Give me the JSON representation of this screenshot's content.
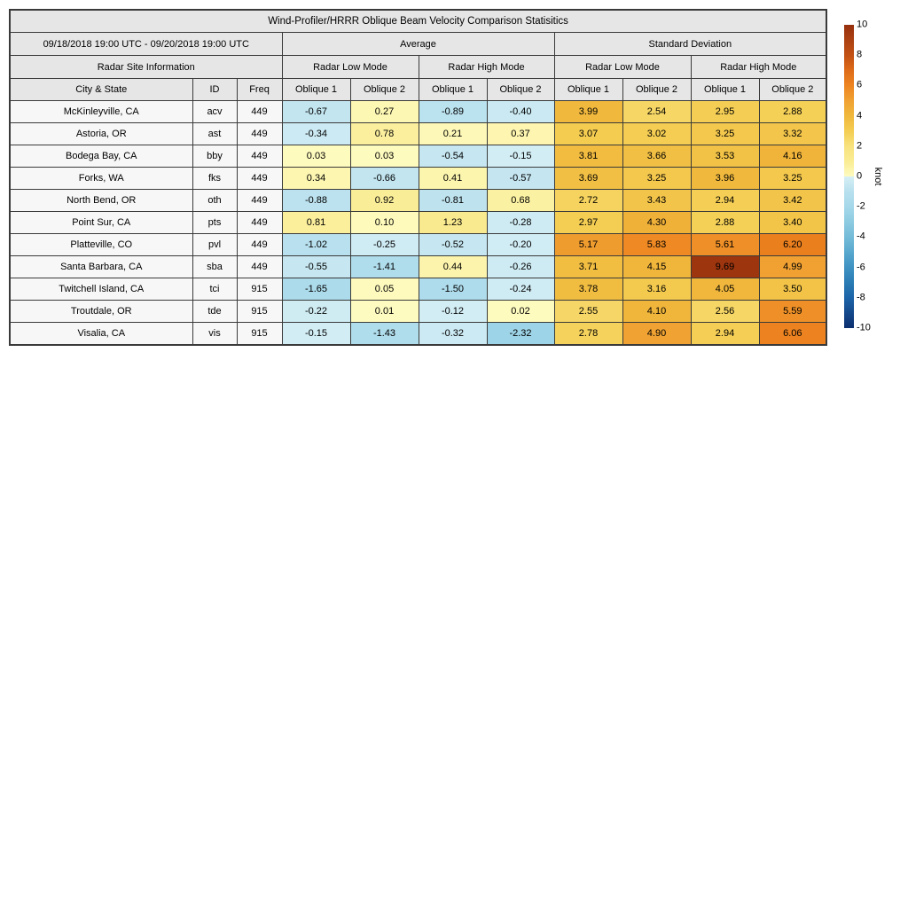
{
  "chart_data": {
    "type": "heatmap-table",
    "title": "Wind-Profiler/HRRR Oblique Beam Velocity Comparison Statisitics",
    "header": {
      "date_range": "09/18/2018 19:00 UTC - 09/20/2018 19:00 UTC",
      "group_average": "Average",
      "group_std": "Standard Deviation",
      "site_info": "Radar Site Information",
      "mode_labels": [
        "Radar Low Mode",
        "Radar High Mode",
        "Radar Low Mode",
        "Radar High Mode"
      ],
      "col_city": "City & State",
      "col_id": "ID",
      "col_freq": "Freq",
      "oblique_labels": [
        "Oblique 1",
        "Oblique 2",
        "Oblique 1",
        "Oblique 2",
        "Oblique 1",
        "Oblique 2",
        "Oblique 1",
        "Oblique 2"
      ]
    },
    "columns": [
      "City & State",
      "ID",
      "Freq",
      "Average Radar Low Mode Oblique 1",
      "Average Radar Low Mode Oblique 2",
      "Average Radar High Mode Oblique 1",
      "Average Radar High Mode Oblique 2",
      "Standard Deviation Radar Low Mode Oblique 1",
      "Standard Deviation Radar Low Mode Oblique 2",
      "Standard Deviation Radar High Mode Oblique 1",
      "Standard Deviation Radar High Mode Oblique 2"
    ],
    "rows": [
      {
        "city": "McKinleyville, CA",
        "id": "acv",
        "freq": "449",
        "values": [
          "-0.67",
          "0.27",
          "-0.89",
          "-0.40",
          "3.99",
          "2.54",
          "2.95",
          "2.88"
        ]
      },
      {
        "city": "Astoria, OR",
        "id": "ast",
        "freq": "449",
        "values": [
          "-0.34",
          "0.78",
          "0.21",
          "0.37",
          "3.07",
          "3.02",
          "3.25",
          "3.32"
        ]
      },
      {
        "city": "Bodega Bay, CA",
        "id": "bby",
        "freq": "449",
        "values": [
          "0.03",
          "0.03",
          "-0.54",
          "-0.15",
          "3.81",
          "3.66",
          "3.53",
          "4.16"
        ]
      },
      {
        "city": "Forks, WA",
        "id": "fks",
        "freq": "449",
        "values": [
          "0.34",
          "-0.66",
          "0.41",
          "-0.57",
          "3.69",
          "3.25",
          "3.96",
          "3.25"
        ]
      },
      {
        "city": "North Bend, OR",
        "id": "oth",
        "freq": "449",
        "values": [
          "-0.88",
          "0.92",
          "-0.81",
          "0.68",
          "2.72",
          "3.43",
          "2.94",
          "3.42"
        ]
      },
      {
        "city": "Point Sur, CA",
        "id": "pts",
        "freq": "449",
        "values": [
          "0.81",
          "0.10",
          "1.23",
          "-0.28",
          "2.97",
          "4.30",
          "2.88",
          "3.40"
        ]
      },
      {
        "city": "Platteville, CO",
        "id": "pvl",
        "freq": "449",
        "values": [
          "-1.02",
          "-0.25",
          "-0.52",
          "-0.20",
          "5.17",
          "5.83",
          "5.61",
          "6.20"
        ]
      },
      {
        "city": "Santa Barbara, CA",
        "id": "sba",
        "freq": "449",
        "values": [
          "-0.55",
          "-1.41",
          "0.44",
          "-0.26",
          "3.71",
          "4.15",
          "9.69",
          "4.99"
        ]
      },
      {
        "city": "Twitchell Island, CA",
        "id": "tci",
        "freq": "915",
        "values": [
          "-1.65",
          "0.05",
          "-1.50",
          "-0.24",
          "3.78",
          "3.16",
          "4.05",
          "3.50"
        ]
      },
      {
        "city": "Troutdale, OR",
        "id": "tde",
        "freq": "915",
        "values": [
          "-0.22",
          "0.01",
          "-0.12",
          "0.02",
          "2.55",
          "4.10",
          "2.56",
          "5.59"
        ]
      },
      {
        "city": "Visalia, CA",
        "id": "vis",
        "freq": "915",
        "values": [
          "-0.15",
          "-1.43",
          "-0.32",
          "-2.32",
          "2.78",
          "4.90",
          "2.94",
          "6.06"
        ]
      }
    ],
    "colorbar": {
      "label": "knot",
      "min": -10,
      "max": 10,
      "ticks": [
        "10",
        "8",
        "6",
        "4",
        "2",
        "0",
        "-2",
        "-4",
        "-6",
        "-8",
        "-10"
      ]
    },
    "colors": {
      "header_bg": "#e6e6e6",
      "label_cell_bg": "#f7f7f7",
      "border": "#3a3a3a",
      "colormap": {
        "neg_stops": [
          [
            -10,
            "#0C2E6E"
          ],
          [
            -9,
            "#14498B"
          ],
          [
            -8,
            "#1C64A8"
          ],
          [
            -7,
            "#2A7CB4"
          ],
          [
            -6,
            "#3E92C2"
          ],
          [
            -5,
            "#58A8CE"
          ],
          [
            -4,
            "#74BBD8"
          ],
          [
            -3,
            "#8DCBE1"
          ],
          [
            -2,
            "#A5D8EA"
          ],
          [
            -1,
            "#B8E0EE"
          ],
          [
            0,
            "#D6EFF5"
          ]
        ],
        "pos_stops": [
          [
            0,
            "#FEFBC0"
          ],
          [
            1,
            "#FAEC94"
          ],
          [
            2,
            "#F8E27E"
          ],
          [
            3,
            "#F4CD52"
          ],
          [
            4,
            "#F0B83C"
          ],
          [
            5,
            "#F0A132"
          ],
          [
            6,
            "#ED8420"
          ],
          [
            7,
            "#DE6B18"
          ],
          [
            8,
            "#C25014"
          ],
          [
            9,
            "#AC4212"
          ],
          [
            10,
            "#962F0D"
          ]
        ]
      }
    }
  }
}
